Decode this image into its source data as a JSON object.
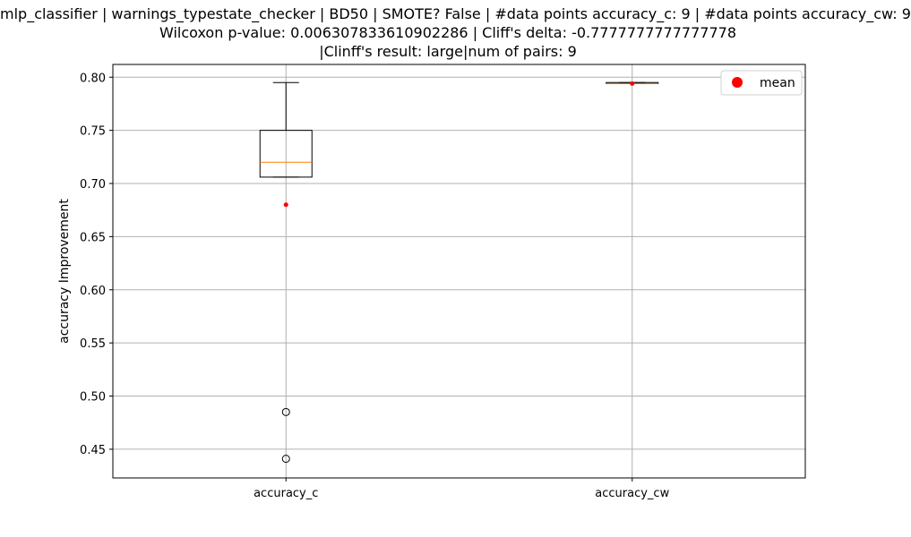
{
  "chart_data": {
    "type": "box",
    "title_lines": [
      "mlp_classifier | warnings_typestate_checker | BD50 | SMOTE? False | #data points accuracy_c: 9 | #data points accuracy_cw: 9",
      "Wilcoxon p-value: 0.006307833610902286 | Cliff's delta: -0.7777777777777778",
      "|Clinff's result: large|num of pairs: 9"
    ],
    "xlabel": "",
    "ylabel": "accuracy Improvement",
    "ylim": [
      0.423,
      0.812
    ],
    "yticks": [
      0.45,
      0.5,
      0.55,
      0.6,
      0.65,
      0.7,
      0.75,
      0.8
    ],
    "ytick_labels": [
      "0.45",
      "0.50",
      "0.55",
      "0.60",
      "0.65",
      "0.70",
      "0.75",
      "0.80"
    ],
    "grid": true,
    "legend": {
      "position": "top-right",
      "entries": [
        {
          "label": "mean",
          "color": "#ff0000"
        }
      ]
    },
    "categories": [
      "accuracy_c",
      "accuracy_cw"
    ],
    "boxes": [
      {
        "name": "accuracy_c",
        "whisker_low": 0.706,
        "q1": 0.706,
        "median": 0.72,
        "q3": 0.75,
        "whisker_high": 0.795,
        "mean": 0.68,
        "outliers": [
          0.485,
          0.441
        ]
      },
      {
        "name": "accuracy_cw",
        "whisker_low": 0.794,
        "q1": 0.794,
        "median": 0.794,
        "q3": 0.795,
        "whisker_high": 0.795,
        "mean": 0.794,
        "outliers": []
      }
    ],
    "colors": {
      "box": "#000000",
      "median": "#ff7f0e",
      "mean": "#ff0000",
      "grid": "#b0b0b0"
    }
  }
}
